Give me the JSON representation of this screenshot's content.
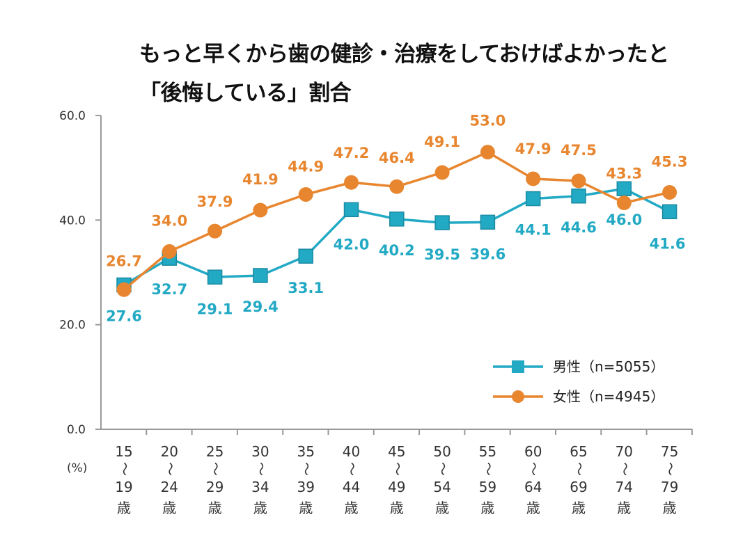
{
  "chart_data": {
    "type": "line",
    "title_line_1": "もっと早くから歯の健診・治療をしておけばよかったと",
    "title_line_2": "「後悔している」割合",
    "ylabel": "(%)",
    "ylim": [
      0,
      60
    ],
    "yticks": [
      "0.0",
      "20.0",
      "40.0",
      "60.0"
    ],
    "categories": [
      [
        "15",
        "〜",
        "19",
        "歳"
      ],
      [
        "20",
        "〜",
        "24",
        "歳"
      ],
      [
        "25",
        "〜",
        "29",
        "歳"
      ],
      [
        "30",
        "〜",
        "34",
        "歳"
      ],
      [
        "35",
        "〜",
        "39",
        "歳"
      ],
      [
        "40",
        "〜",
        "44",
        "歳"
      ],
      [
        "45",
        "〜",
        "49",
        "歳"
      ],
      [
        "50",
        "〜",
        "54",
        "歳"
      ],
      [
        "55",
        "〜",
        "59",
        "歳"
      ],
      [
        "60",
        "〜",
        "64",
        "歳"
      ],
      [
        "65",
        "〜",
        "69",
        "歳"
      ],
      [
        "70",
        "〜",
        "74",
        "歳"
      ],
      [
        "75",
        "〜",
        "79",
        "歳"
      ]
    ],
    "series": [
      {
        "name": "男性（n=5055）",
        "color": "#22a9c4",
        "marker": "square",
        "values": [
          27.6,
          32.7,
          29.1,
          29.4,
          33.1,
          42.0,
          40.2,
          39.5,
          39.6,
          44.1,
          44.6,
          46.0,
          41.6
        ],
        "labels": [
          "27.6",
          "32.7",
          "29.1",
          "29.4",
          "33.1",
          "42.0",
          "40.2",
          "39.5",
          "39.6",
          "44.1",
          "44.6",
          "46.0",
          "41.6"
        ]
      },
      {
        "name": "女性（n=4945）",
        "color": "#e8862f",
        "marker": "circle",
        "values": [
          26.7,
          34.0,
          37.9,
          41.9,
          44.9,
          47.2,
          46.4,
          49.1,
          53.0,
          47.9,
          47.5,
          43.3,
          45.3
        ],
        "labels": [
          "26.7",
          "34.0",
          "37.9",
          "41.9",
          "44.9",
          "47.2",
          "46.4",
          "49.1",
          "53.0",
          "47.9",
          "47.5",
          "43.3",
          "45.3"
        ]
      }
    ],
    "legend_position": "right-middle",
    "grid": false
  }
}
